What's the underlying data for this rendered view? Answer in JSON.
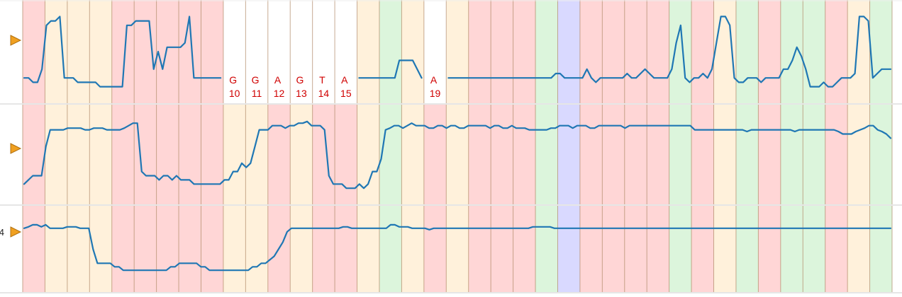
{
  "chart_data": {
    "type": "line",
    "title": "",
    "xlabel": "",
    "ylabel": "",
    "colors": {
      "A": "#ffd6d6",
      "G": "#fff1db",
      "C": "#dcf5dc",
      "T": "#ffd6d6",
      "N": "#d9d9ff",
      "divider": "#b08866",
      "trace": "#1f77b4",
      "marker": "#f0a020",
      "label": "#d00000"
    },
    "columns": [
      {
        "base": "A"
      },
      {
        "base": "G"
      },
      {
        "base": "G"
      },
      {
        "base": "G"
      },
      {
        "base": "A"
      },
      {
        "base": "A"
      },
      {
        "base": "A"
      },
      {
        "base": "A"
      },
      {
        "base": "A"
      },
      {
        "base": "G",
        "pos": 10
      },
      {
        "base": "G",
        "pos": 11
      },
      {
        "base": "A",
        "pos": 12
      },
      {
        "base": "G",
        "pos": 13
      },
      {
        "base": "T",
        "pos": 14
      },
      {
        "base": "A",
        "pos": 15
      },
      {
        "base": "G"
      },
      {
        "base": "C"
      },
      {
        "base": "G"
      },
      {
        "base": "A",
        "pos": 19
      },
      {
        "base": "G"
      },
      {
        "base": "A"
      },
      {
        "base": "A"
      },
      {
        "base": "A"
      },
      {
        "base": "C"
      },
      {
        "base": "N"
      },
      {
        "base": "A"
      },
      {
        "base": "A"
      },
      {
        "base": "A"
      },
      {
        "base": "A"
      },
      {
        "base": "C"
      },
      {
        "base": "A"
      },
      {
        "base": "G"
      },
      {
        "base": "C"
      },
      {
        "base": "A"
      },
      {
        "base": "C"
      },
      {
        "base": "C"
      },
      {
        "base": "A"
      },
      {
        "base": "G"
      },
      {
        "base": "C"
      }
    ],
    "rows": [
      {
        "marker_label": "",
        "masked_columns": [
          9,
          10,
          11,
          12,
          13,
          14,
          18
        ]
      },
      {
        "marker_label": "",
        "masked_columns": []
      },
      {
        "marker_label": "4",
        "masked_columns": []
      }
    ],
    "series": [
      {
        "values": [
          0.2,
          0.2,
          0.15,
          0.15,
          0.3,
          0.8,
          0.85,
          0.85,
          0.9,
          0.2,
          0.2,
          0.2,
          0.15,
          0.15,
          0.15,
          0.15,
          0.15,
          0.1,
          0.1,
          0.1,
          0.1,
          0.1,
          0.1,
          0.8,
          0.8,
          0.85,
          0.85,
          0.85,
          0.85,
          0.3,
          0.5,
          0.3,
          0.55,
          0.55,
          0.55,
          0.55,
          0.6,
          0.9,
          0.2,
          0.2,
          0.2,
          0.2,
          0.2,
          0.2,
          0.2,
          0.2,
          0.2,
          0.15,
          0.15,
          0.15,
          0.15,
          0.1,
          0.1,
          0.1,
          0.1,
          0.1,
          0.1,
          0.1,
          0.1,
          0.1,
          0.1,
          0.1,
          0.1,
          0.2,
          0.2,
          0.2,
          0.2,
          0.2,
          0.2,
          0.2,
          0.2,
          0.25,
          0.25,
          0.2,
          0.2,
          0.2,
          0.2,
          0.2,
          0.2,
          0.2,
          0.2,
          0.2,
          0.2,
          0.2,
          0.4,
          0.4,
          0.4,
          0.4,
          0.3,
          0.2,
          0.1,
          0.2,
          0.15,
          0.2,
          0.2,
          0.2,
          0.2,
          0.2,
          0.2,
          0.2,
          0.2,
          0.2,
          0.2,
          0.2,
          0.2,
          0.2,
          0.2,
          0.2,
          0.2,
          0.2,
          0.2,
          0.2,
          0.2,
          0.2,
          0.2,
          0.2,
          0.2,
          0.2,
          0.2,
          0.25,
          0.25,
          0.2,
          0.2,
          0.2,
          0.2,
          0.2,
          0.3,
          0.2,
          0.15,
          0.2,
          0.2,
          0.2,
          0.2,
          0.2,
          0.2,
          0.25,
          0.2,
          0.2,
          0.25,
          0.3,
          0.25,
          0.2,
          0.2,
          0.2,
          0.2,
          0.3,
          0.6,
          0.8,
          0.2,
          0.15,
          0.2,
          0.2,
          0.25,
          0.2,
          0.3,
          0.6,
          0.9,
          0.9,
          0.8,
          0.2,
          0.15,
          0.15,
          0.2,
          0.2,
          0.2,
          0.15,
          0.2,
          0.2,
          0.2,
          0.2,
          0.3,
          0.3,
          0.4,
          0.55,
          0.45,
          0.3,
          0.1,
          0.1,
          0.1,
          0.15,
          0.1,
          0.1,
          0.15,
          0.2,
          0.2,
          0.2,
          0.25,
          0.9,
          0.9,
          0.85,
          0.2,
          0.25,
          0.3,
          0.3,
          0.3
        ]
      },
      {
        "values": [
          0.15,
          0.2,
          0.25,
          0.25,
          0.25,
          0.6,
          0.8,
          0.8,
          0.8,
          0.8,
          0.82,
          0.82,
          0.82,
          0.82,
          0.8,
          0.8,
          0.82,
          0.82,
          0.82,
          0.8,
          0.8,
          0.8,
          0.8,
          0.82,
          0.85,
          0.88,
          0.88,
          0.3,
          0.25,
          0.25,
          0.25,
          0.2,
          0.25,
          0.25,
          0.2,
          0.25,
          0.2,
          0.2,
          0.2,
          0.15,
          0.15,
          0.15,
          0.15,
          0.15,
          0.15,
          0.15,
          0.2,
          0.2,
          0.3,
          0.3,
          0.4,
          0.35,
          0.4,
          0.6,
          0.8,
          0.8,
          0.8,
          0.85,
          0.85,
          0.85,
          0.82,
          0.85,
          0.85,
          0.88,
          0.88,
          0.9,
          0.85,
          0.85,
          0.85,
          0.8,
          0.25,
          0.15,
          0.15,
          0.15,
          0.1,
          0.1,
          0.1,
          0.15,
          0.1,
          0.15,
          0.3,
          0.3,
          0.45,
          0.8,
          0.82,
          0.85,
          0.85,
          0.82,
          0.85,
          0.88,
          0.85,
          0.85,
          0.85,
          0.82,
          0.82,
          0.85,
          0.85,
          0.82,
          0.85,
          0.85,
          0.82,
          0.82,
          0.85,
          0.85,
          0.85,
          0.85,
          0.85,
          0.82,
          0.85,
          0.85,
          0.82,
          0.82,
          0.85,
          0.82,
          0.82,
          0.82,
          0.8,
          0.8,
          0.8,
          0.8,
          0.8,
          0.82,
          0.82,
          0.85,
          0.85,
          0.85,
          0.82,
          0.85,
          0.85,
          0.85,
          0.82,
          0.82,
          0.85,
          0.85,
          0.85,
          0.85,
          0.85,
          0.85,
          0.82,
          0.85,
          0.85,
          0.85,
          0.85,
          0.85,
          0.85,
          0.85,
          0.85,
          0.85,
          0.85,
          0.85,
          0.85,
          0.85,
          0.85,
          0.85,
          0.8,
          0.8,
          0.8,
          0.8,
          0.8,
          0.8,
          0.8,
          0.8,
          0.8,
          0.8,
          0.8,
          0.8,
          0.78,
          0.8,
          0.8,
          0.8,
          0.8,
          0.8,
          0.8,
          0.8,
          0.8,
          0.8,
          0.8,
          0.78,
          0.8,
          0.8,
          0.8,
          0.8,
          0.8,
          0.8,
          0.8,
          0.8,
          0.8,
          0.78,
          0.75,
          0.75,
          0.75,
          0.78,
          0.8,
          0.82,
          0.85,
          0.85,
          0.8,
          0.78,
          0.75,
          0.7
        ]
      },
      {
        "values": [
          0.8,
          0.82,
          0.85,
          0.85,
          0.82,
          0.85,
          0.8,
          0.8,
          0.8,
          0.8,
          0.82,
          0.82,
          0.82,
          0.8,
          0.8,
          0.8,
          0.5,
          0.3,
          0.3,
          0.3,
          0.3,
          0.25,
          0.25,
          0.2,
          0.2,
          0.2,
          0.2,
          0.2,
          0.2,
          0.2,
          0.2,
          0.2,
          0.2,
          0.2,
          0.25,
          0.25,
          0.3,
          0.3,
          0.3,
          0.3,
          0.3,
          0.25,
          0.25,
          0.2,
          0.2,
          0.2,
          0.2,
          0.2,
          0.2,
          0.2,
          0.2,
          0.2,
          0.2,
          0.25,
          0.25,
          0.3,
          0.3,
          0.35,
          0.4,
          0.5,
          0.6,
          0.75,
          0.8,
          0.8,
          0.8,
          0.8,
          0.8,
          0.8,
          0.8,
          0.8,
          0.8,
          0.8,
          0.8,
          0.8,
          0.82,
          0.82,
          0.8,
          0.8,
          0.8,
          0.8,
          0.8,
          0.8,
          0.8,
          0.8,
          0.8,
          0.85,
          0.85,
          0.82,
          0.82,
          0.82,
          0.8,
          0.8,
          0.8,
          0.8,
          0.78,
          0.8,
          0.8,
          0.8,
          0.8,
          0.8,
          0.8,
          0.8,
          0.8,
          0.8,
          0.8,
          0.8,
          0.8,
          0.8,
          0.8,
          0.8,
          0.8,
          0.8,
          0.8,
          0.8,
          0.8,
          0.8,
          0.8,
          0.8,
          0.82,
          0.82,
          0.82,
          0.82,
          0.82,
          0.8,
          0.8,
          0.8,
          0.8,
          0.8,
          0.8,
          0.8,
          0.8,
          0.8,
          0.8,
          0.8,
          0.8,
          0.8,
          0.8,
          0.8,
          0.8,
          0.8,
          0.8,
          0.8,
          0.8,
          0.8,
          0.8,
          0.8,
          0.8,
          0.8,
          0.8,
          0.8,
          0.8,
          0.8,
          0.8,
          0.8,
          0.8,
          0.8,
          0.8,
          0.8,
          0.8,
          0.8,
          0.8,
          0.8,
          0.8,
          0.8,
          0.8,
          0.8,
          0.8,
          0.8,
          0.8,
          0.8,
          0.8,
          0.8,
          0.8,
          0.8,
          0.8,
          0.8,
          0.8,
          0.8,
          0.8,
          0.8,
          0.8,
          0.8,
          0.8,
          0.8,
          0.8,
          0.8,
          0.8,
          0.8,
          0.8,
          0.8,
          0.8,
          0.8,
          0.8,
          0.8,
          0.8,
          0.8,
          0.8,
          0.8,
          0.8,
          0.8,
          0.8,
          0.8
        ]
      }
    ]
  }
}
